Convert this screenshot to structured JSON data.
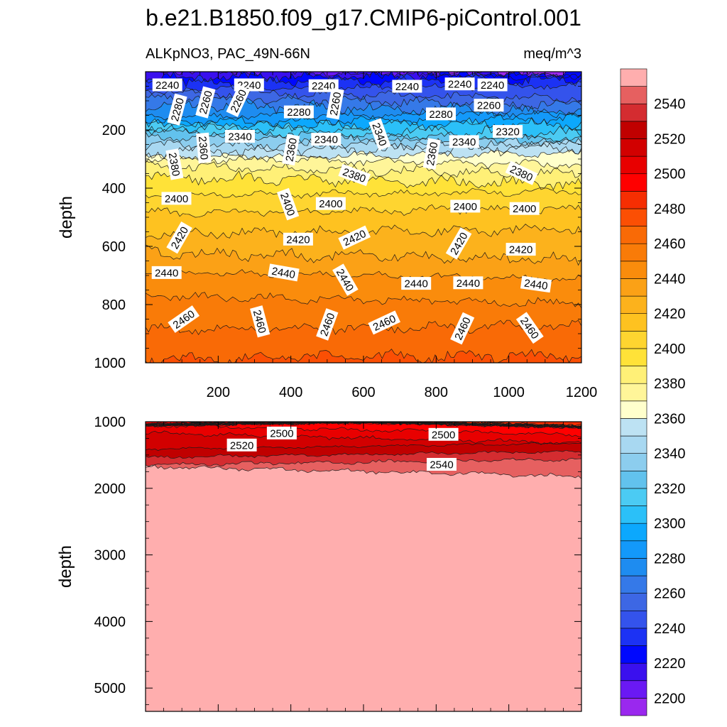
{
  "chart_data": {
    "type": "contour",
    "title": "b.e21.B1850.f09_g17.CMIP6-piControl.001",
    "variable_label": "ALKpNO3, PAC_49N-66N",
    "units_label": "meq/m^3",
    "colors": {
      "background": "#ffffff",
      "axis": "#000000",
      "contour_line": "#1a1a1a",
      "label_box": "#ffffff"
    },
    "colorbar": {
      "levels": [
        2200,
        2210,
        2220,
        2230,
        2240,
        2250,
        2260,
        2270,
        2280,
        2290,
        2300,
        2310,
        2320,
        2330,
        2340,
        2350,
        2360,
        2370,
        2380,
        2390,
        2400,
        2410,
        2420,
        2430,
        2440,
        2450,
        2460,
        2470,
        2480,
        2490,
        2500,
        2510,
        2520,
        2530,
        2540,
        2550
      ],
      "colors": [
        "#9a28ee",
        "#6a19f4",
        "#3a10ee",
        "#0008fe",
        "#1c32f4",
        "#3453ec",
        "#3d67e4",
        "#3579e8",
        "#1e8cf0",
        "#1399fa",
        "#0ca8fd",
        "#2bc0f8",
        "#4bcbf3",
        "#62c2ed",
        "#8ccdee",
        "#a8d8f1",
        "#bde2f3",
        "#ffffcc",
        "#fff599",
        "#fff077",
        "#ffe238",
        "#fed530",
        "#fec220",
        "#fcb21c",
        "#fba116",
        "#fa8c0c",
        "#f97b08",
        "#f96a06",
        "#fb4f04",
        "#f62e02",
        "#ff0000",
        "#e80000",
        "#d20000",
        "#c00000",
        "#d42c30",
        "#e66060",
        "#ffaeae"
      ],
      "labels": [
        "2200",
        "2220",
        "2240",
        "2260",
        "2280",
        "2300",
        "2320",
        "2340",
        "2360",
        "2380",
        "2400",
        "2420",
        "2440",
        "2460",
        "2480",
        "2500",
        "2520",
        "2540"
      ]
    },
    "upper_panel": {
      "ylabel": "depth",
      "ylim": [
        0,
        1000
      ],
      "xlim": [
        0,
        1200
      ],
      "yticks": [
        200,
        400,
        600,
        800,
        1000
      ],
      "xticks": [
        200,
        400,
        600,
        800,
        1000,
        1200
      ],
      "profile": {
        "depths": [
          0,
          20,
          50,
          80,
          120,
          160,
          200,
          250,
          290,
          320,
          400,
          450,
          500,
          550,
          600,
          650,
          700,
          800,
          900,
          950,
          1000
        ],
        "values": [
          2205,
          2225,
          2238,
          2250,
          2268,
          2285,
          2310,
          2340,
          2362,
          2375,
          2397,
          2405,
          2414,
          2420,
          2426,
          2432,
          2440,
          2452,
          2462,
          2467,
          2472
        ]
      },
      "contour_labels": [
        {
          "text": "2240",
          "x": 60,
          "y": 45,
          "rot": 0
        },
        {
          "text": "2240",
          "x": 285,
          "y": 45,
          "rot": 0
        },
        {
          "text": "2240",
          "x": 720,
          "y": 50,
          "rot": 0
        },
        {
          "text": "2240",
          "x": 490,
          "y": 48,
          "rot": 0
        },
        {
          "text": "2240",
          "x": 865,
          "y": 42,
          "rot": 0
        },
        {
          "text": "2240",
          "x": 955,
          "y": 45,
          "rot": 0
        },
        {
          "text": "2280",
          "x": 87,
          "y": 130,
          "rot": -75
        },
        {
          "text": "2260",
          "x": 165,
          "y": 105,
          "rot": -75
        },
        {
          "text": "2260",
          "x": 255,
          "y": 100,
          "rot": -65
        },
        {
          "text": "2280",
          "x": 422,
          "y": 138,
          "rot": 0
        },
        {
          "text": "2260",
          "x": 522,
          "y": 110,
          "rot": -80
        },
        {
          "text": "2280",
          "x": 813,
          "y": 145,
          "rot": 0
        },
        {
          "text": "2260",
          "x": 945,
          "y": 115,
          "rot": 0
        },
        {
          "text": "2340",
          "x": 260,
          "y": 222,
          "rot": 0
        },
        {
          "text": "2340",
          "x": 497,
          "y": 232,
          "rot": 0
        },
        {
          "text": "2340",
          "x": 645,
          "y": 215,
          "rot": 70
        },
        {
          "text": "2360",
          "x": 160,
          "y": 262,
          "rot": 85
        },
        {
          "text": "2360",
          "x": 400,
          "y": 268,
          "rot": -80
        },
        {
          "text": "2340",
          "x": 877,
          "y": 240,
          "rot": 0
        },
        {
          "text": "2320",
          "x": 997,
          "y": 205,
          "rot": 0
        },
        {
          "text": "2360",
          "x": 788,
          "y": 282,
          "rot": -80
        },
        {
          "text": "2380",
          "x": 80,
          "y": 318,
          "rot": 80
        },
        {
          "text": "2380",
          "x": 575,
          "y": 355,
          "rot": 20
        },
        {
          "text": "2380",
          "x": 1035,
          "y": 348,
          "rot": 25
        },
        {
          "text": "2400",
          "x": 85,
          "y": 435,
          "rot": 0
        },
        {
          "text": "2400",
          "x": 392,
          "y": 455,
          "rot": 70
        },
        {
          "text": "2400",
          "x": 510,
          "y": 453,
          "rot": 0
        },
        {
          "text": "2400",
          "x": 880,
          "y": 462,
          "rot": 0
        },
        {
          "text": "2400",
          "x": 1043,
          "y": 470,
          "rot": 0
        },
        {
          "text": "2420",
          "x": 93,
          "y": 570,
          "rot": -60
        },
        {
          "text": "2420",
          "x": 420,
          "y": 575,
          "rot": 0
        },
        {
          "text": "2420",
          "x": 575,
          "y": 570,
          "rot": -25
        },
        {
          "text": "2420",
          "x": 862,
          "y": 590,
          "rot": -60
        },
        {
          "text": "2420",
          "x": 1033,
          "y": 610,
          "rot": 0
        },
        {
          "text": "2440",
          "x": 58,
          "y": 690,
          "rot": 0
        },
        {
          "text": "2440",
          "x": 380,
          "y": 690,
          "rot": 10
        },
        {
          "text": "2440",
          "x": 550,
          "y": 715,
          "rot": 60
        },
        {
          "text": "2440",
          "x": 745,
          "y": 727,
          "rot": 0
        },
        {
          "text": "2440",
          "x": 888,
          "y": 725,
          "rot": 0
        },
        {
          "text": "2440",
          "x": 1075,
          "y": 730,
          "rot": 8
        },
        {
          "text": "2460",
          "x": 105,
          "y": 850,
          "rot": -35
        },
        {
          "text": "2460",
          "x": 315,
          "y": 858,
          "rot": 75
        },
        {
          "text": "2460",
          "x": 500,
          "y": 868,
          "rot": -70
        },
        {
          "text": "2460",
          "x": 657,
          "y": 862,
          "rot": -25
        },
        {
          "text": "2460",
          "x": 872,
          "y": 882,
          "rot": -65
        },
        {
          "text": "2460",
          "x": 1058,
          "y": 880,
          "rot": 55
        }
      ]
    },
    "lower_panel": {
      "ylabel": "depth",
      "ylim": [
        1000,
        5350
      ],
      "xlim": [
        0,
        1200
      ],
      "yticks": [
        1000,
        2000,
        3000,
        4000,
        5000
      ],
      "profile": {
        "depths": [
          1000,
          1080,
          1170,
          1270,
          1380,
          1490,
          1580,
          1680,
          1780,
          5350
        ],
        "values": [
          2490,
          2496,
          2504,
          2512,
          2521,
          2530,
          2538,
          2546,
          2552,
          2560
        ]
      },
      "contour_labels": [
        {
          "text": "2500",
          "x": 375,
          "y": 1170,
          "rot": 0
        },
        {
          "text": "2500",
          "x": 820,
          "y": 1190,
          "rot": 0
        },
        {
          "text": "2520",
          "x": 265,
          "y": 1350,
          "rot": 0
        },
        {
          "text": "2540",
          "x": 815,
          "y": 1640,
          "rot": 0
        }
      ]
    }
  }
}
